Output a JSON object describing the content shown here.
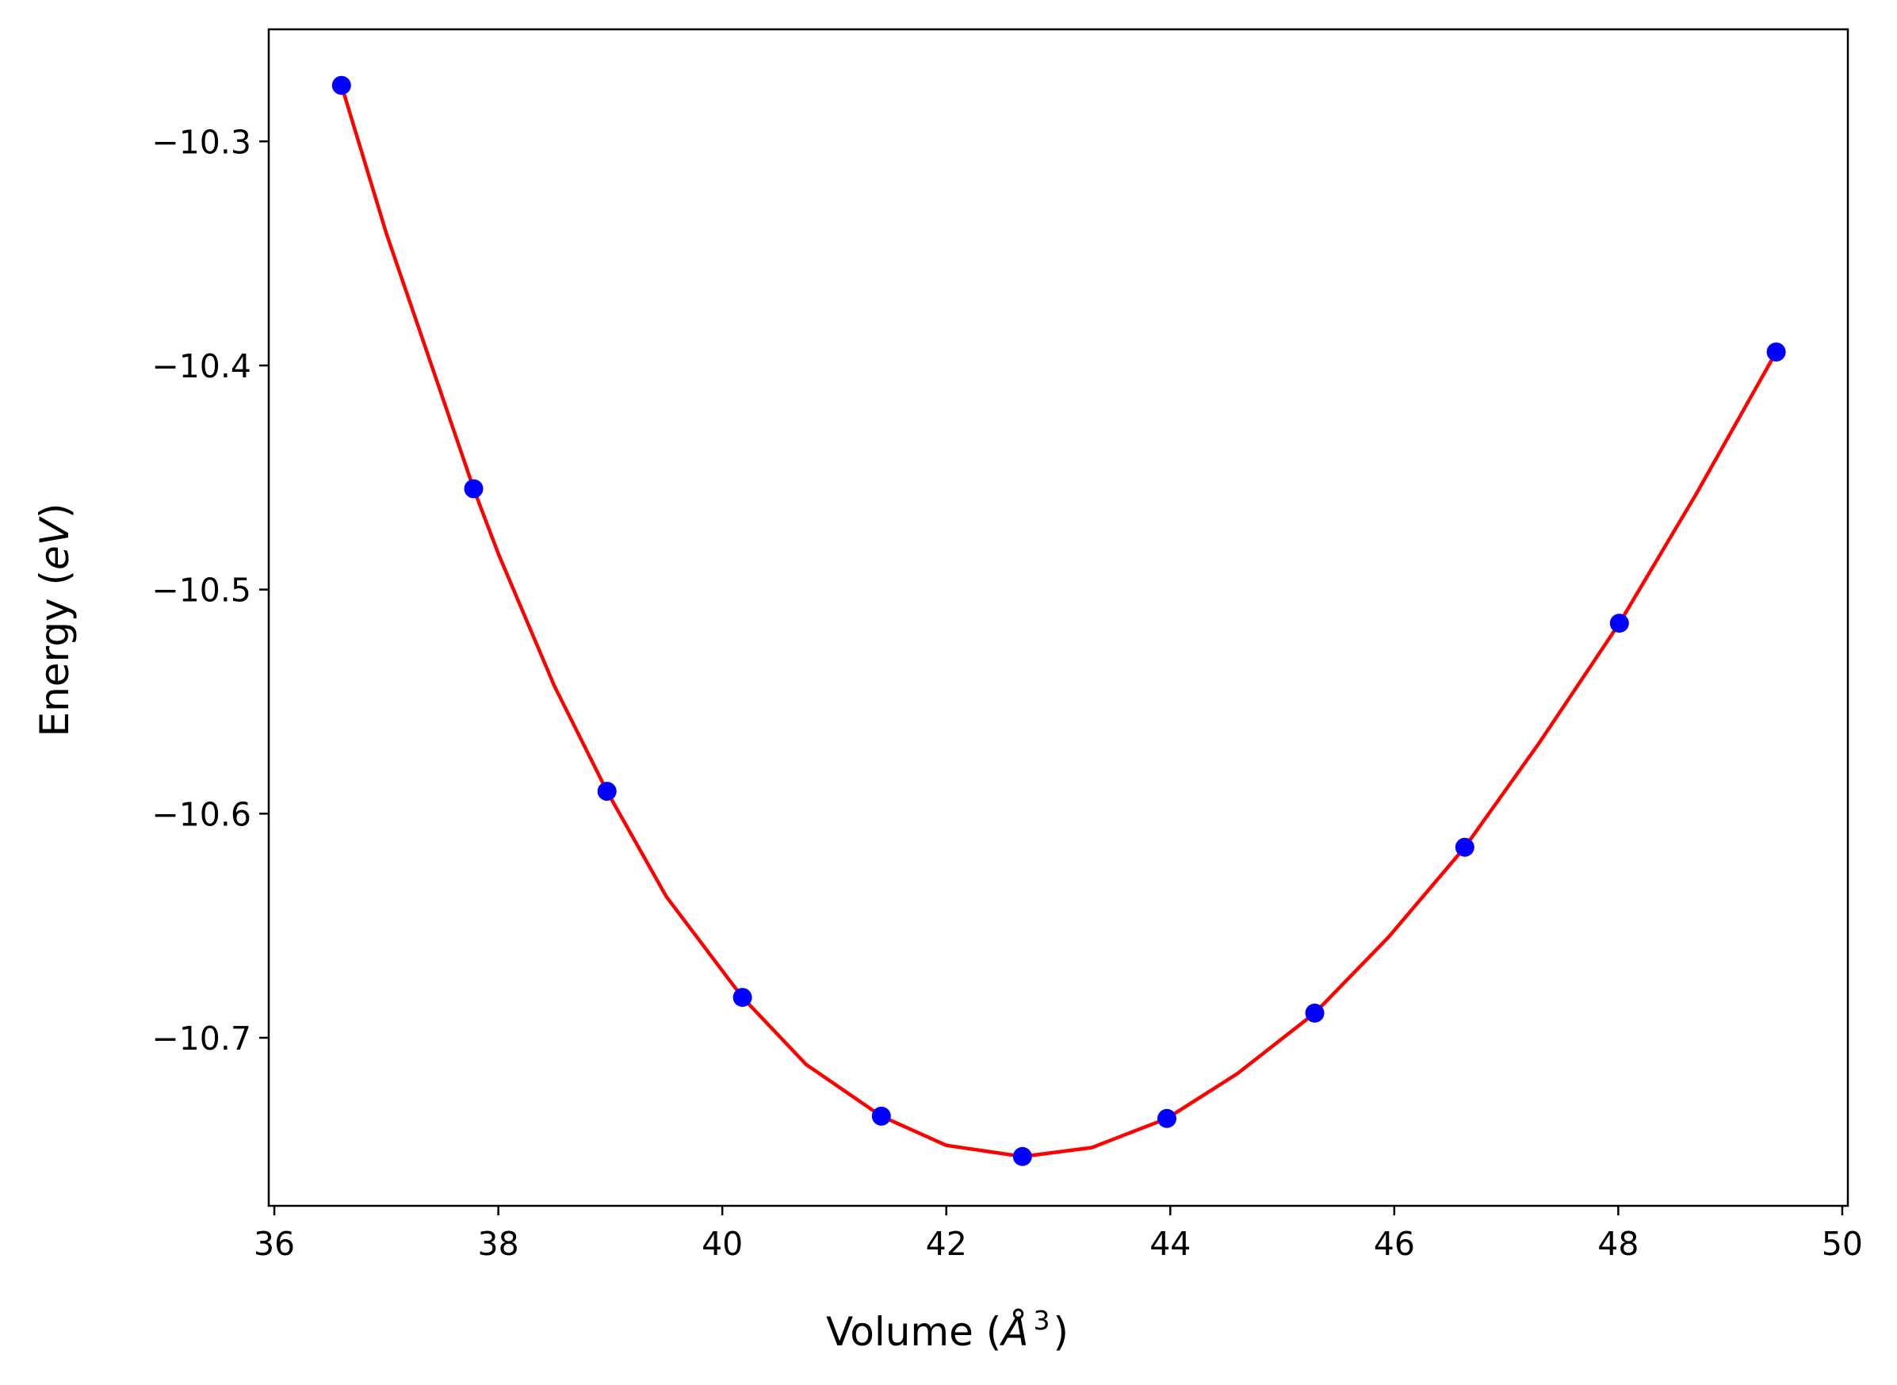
{
  "chart_data": {
    "type": "scatter",
    "title": "",
    "xlabel": {
      "prefix": "Volume (",
      "symbol": "Å",
      "superscript": "3",
      "suffix": ")"
    },
    "ylabel": {
      "prefix": "Energy (",
      "unit": "eV",
      "suffix": ")"
    },
    "xlim": [
      35.95,
      50.05
    ],
    "ylim": [
      -10.775,
      -10.25
    ],
    "x_ticks": [
      36,
      38,
      40,
      42,
      44,
      46,
      48,
      50
    ],
    "x_tick_labels": [
      "36",
      "38",
      "40",
      "42",
      "44",
      "46",
      "48",
      "50"
    ],
    "y_ticks": [
      -10.3,
      -10.4,
      -10.5,
      -10.6,
      -10.7
    ],
    "y_tick_labels": [
      "−10.3",
      "−10.4",
      "−10.5",
      "−10.6",
      "−10.7"
    ],
    "grid": false,
    "legend": "none",
    "series": [
      {
        "kind": "points",
        "color": "#0000ff",
        "x": [
          36.6,
          37.78,
          38.97,
          40.18,
          41.42,
          42.68,
          43.97,
          45.29,
          46.63,
          48.01,
          49.41
        ],
        "y": [
          -10.275,
          -10.455,
          -10.59,
          -10.682,
          -10.735,
          -10.753,
          -10.736,
          -10.689,
          -10.615,
          -10.515,
          -10.394
        ]
      },
      {
        "kind": "fit-curve",
        "color": "#ff0000",
        "x": [
          36.6,
          37.0,
          37.5,
          37.78,
          38.0,
          38.5,
          38.97,
          39.5,
          40.18,
          40.75,
          41.42,
          42.0,
          42.68,
          43.3,
          43.97,
          44.6,
          45.29,
          45.95,
          46.63,
          47.3,
          48.01,
          48.7,
          49.41
        ],
        "y": [
          -10.275,
          -10.341,
          -10.414,
          -10.455,
          -10.484,
          -10.543,
          -10.59,
          -10.637,
          -10.682,
          -10.712,
          -10.735,
          -10.748,
          -10.753,
          -10.749,
          -10.736,
          -10.716,
          -10.689,
          -10.655,
          -10.615,
          -10.568,
          -10.515,
          -10.457,
          -10.394
        ]
      }
    ]
  }
}
